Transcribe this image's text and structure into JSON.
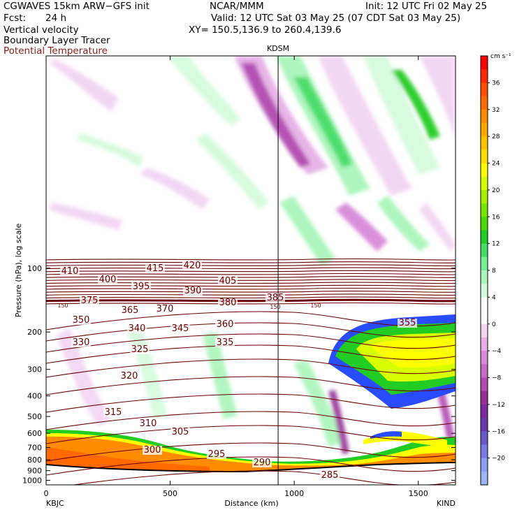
{
  "header": {
    "model": "CGWAVES 15km ARW−GFS init",
    "org": "NCAR/MMM",
    "init": "Init: 12 UTC Fri 02 May 25",
    "fcst_label": "Fcst:",
    "fcst_value": "24 h",
    "valid": "Valid: 12 UTC Sat 03 May 25 (07 CDT Sat 03 May 25)",
    "field1": "Vertical velocity",
    "field2": "Boundary Layer Tracer",
    "field3": "Potential Temperature",
    "xy": "XY= 150.5,136.9 to 260.4,139.6",
    "marker_label": "KDSM",
    "field3_color": "#8b1a1a"
  },
  "chart_data": {
    "type": "heatmap",
    "title": "",
    "xlabel": "Distance (km)",
    "ylabel": "Pressure (hPa), log scale",
    "xlim": [
      0,
      1650
    ],
    "ylim": [
      1050,
      10
    ],
    "y_scale": "log",
    "x_ticks": [
      0,
      500,
      1000,
      1500
    ],
    "x_tick_labels": [
      "0",
      "500",
      "1000",
      "1500"
    ],
    "y_ticks": [
      100,
      200,
      300,
      400,
      500,
      600,
      700,
      800,
      900,
      1000
    ],
    "y_tick_labels": [
      "100",
      "200",
      "300",
      "400",
      "500",
      "600",
      "700",
      "800",
      "900",
      "1000"
    ],
    "x_start_label": "KBJC",
    "x_end_label": "KIND",
    "vertical_marker": {
      "x": 935,
      "label": "KDSM"
    },
    "colorbar": {
      "units": "cm s⁻¹",
      "labels": [
        "36",
        "32",
        "28",
        "24",
        "20",
        "16",
        "12",
        "8",
        "4",
        "0",
        "−4",
        "−8",
        "−12",
        "−16",
        "−20"
      ],
      "colors": [
        "#ff0000",
        "#ff2a00",
        "#ff4e00",
        "#ff6a00",
        "#ff8c00",
        "#ffa500",
        "#ffc300",
        "#ffdf00",
        "#ffff00",
        "#d8ff00",
        "#a8f000",
        "#78e400",
        "#4ad800",
        "#22cc22",
        "#44dd66",
        "#77ee99",
        "#aaf5bb",
        "#d5fbdd",
        "#ffffff",
        "#ffffff",
        "#f2d5f2",
        "#e6b0e6",
        "#d88ad8",
        "#c66ac6",
        "#b04ab0",
        "#963096",
        "#7a2a9e",
        "#6a3aaa",
        "#6a5ac8",
        "#7a7ae0",
        "#8c9cf0",
        "#9cb4f8"
      ]
    },
    "theta_contours": [
      {
        "value": 410,
        "label": "410"
      },
      {
        "value": 415,
        "label": "415"
      },
      {
        "value": 420,
        "label": "420"
      },
      {
        "value": 400,
        "label": "400"
      },
      {
        "value": 405,
        "label": "405"
      },
      {
        "value": 395,
        "label": "395"
      },
      {
        "value": 390,
        "label": "390"
      },
      {
        "value": 385,
        "label": "385"
      },
      {
        "value": 380,
        "label": "380"
      },
      {
        "value": 375,
        "label": "375"
      },
      {
        "value": 370,
        "label": "370"
      },
      {
        "value": 365,
        "label": "365"
      },
      {
        "value": 360,
        "label": "360"
      },
      {
        "value": 355,
        "label": "355"
      },
      {
        "value": 350,
        "label": "350"
      },
      {
        "value": 345,
        "label": "345"
      },
      {
        "value": 340,
        "label": "340"
      },
      {
        "value": 335,
        "label": "335"
      },
      {
        "value": 330,
        "label": "330"
      },
      {
        "value": 325,
        "label": "325"
      },
      {
        "value": 320,
        "label": "320"
      },
      {
        "value": 315,
        "label": "315"
      },
      {
        "value": 310,
        "label": "310"
      },
      {
        "value": 305,
        "label": "305"
      },
      {
        "value": 300,
        "label": "300"
      },
      {
        "value": 295,
        "label": "295"
      },
      {
        "value": 290,
        "label": "290"
      },
      {
        "value": 285,
        "label": "285"
      }
    ],
    "tracer_contour_label": "150",
    "theta_contour_color": "#6b0000"
  }
}
